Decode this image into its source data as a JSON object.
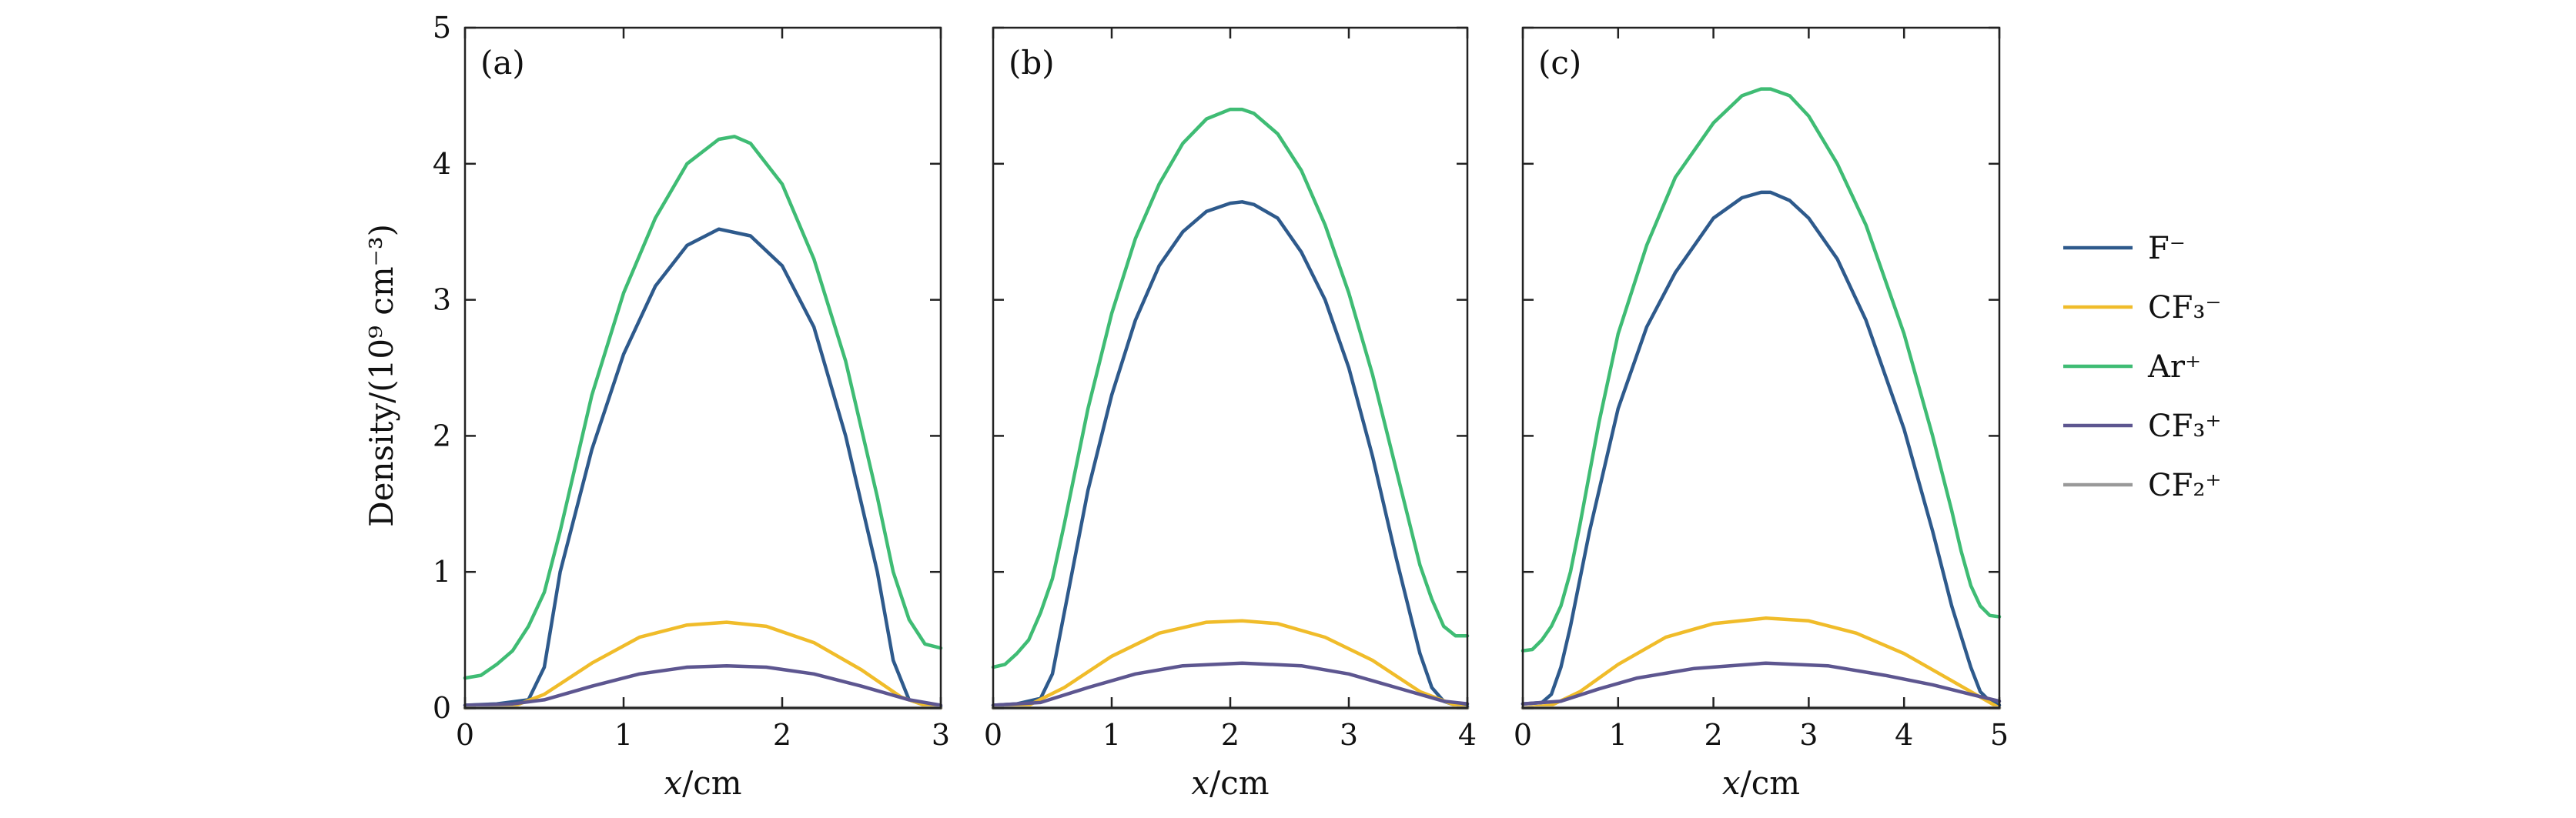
{
  "chart_data": [
    {
      "type": "line",
      "panel_label": "(a)",
      "xlabel_var": "x",
      "xlabel_unit": "/cm",
      "ylabel": "Density/(10⁹ cm⁻³)",
      "xlim": [
        0,
        3
      ],
      "ylim": [
        0,
        5
      ],
      "xticks": [
        0,
        1,
        2,
        3
      ],
      "yticks": [
        0,
        1,
        2,
        3,
        4,
        5
      ],
      "series": [
        {
          "name": "F⁻",
          "color": "#2e5a8c",
          "x": [
            0,
            0.2,
            0.4,
            0.5,
            0.6,
            0.8,
            1.0,
            1.2,
            1.4,
            1.6,
            1.8,
            2.0,
            2.2,
            2.4,
            2.6,
            2.7,
            2.8,
            2.9,
            3.0
          ],
          "y": [
            0.02,
            0.03,
            0.06,
            0.3,
            1.0,
            1.9,
            2.6,
            3.1,
            3.4,
            3.52,
            3.47,
            3.25,
            2.8,
            2.0,
            1.0,
            0.35,
            0.06,
            0.02,
            0.01
          ]
        },
        {
          "name": "CF₃⁻",
          "color": "#f0bc2a",
          "x": [
            0,
            0.3,
            0.5,
            0.8,
            1.1,
            1.4,
            1.65,
            1.9,
            2.2,
            2.5,
            2.75,
            2.9,
            3.0
          ],
          "y": [
            0.0,
            0.01,
            0.1,
            0.33,
            0.52,
            0.61,
            0.63,
            0.6,
            0.48,
            0.28,
            0.08,
            0.02,
            0.0
          ]
        },
        {
          "name": "Ar⁺",
          "color": "#3fbc74",
          "x": [
            0,
            0.1,
            0.2,
            0.3,
            0.4,
            0.5,
            0.6,
            0.8,
            1.0,
            1.2,
            1.4,
            1.6,
            1.7,
            1.8,
            2.0,
            2.2,
            2.4,
            2.6,
            2.7,
            2.8,
            2.9,
            3.0
          ],
          "y": [
            0.22,
            0.24,
            0.32,
            0.42,
            0.6,
            0.85,
            1.3,
            2.3,
            3.05,
            3.6,
            4.0,
            4.18,
            4.2,
            4.15,
            3.85,
            3.3,
            2.55,
            1.55,
            1.0,
            0.65,
            0.47,
            0.44
          ]
        },
        {
          "name": "CF₃⁺",
          "color": "#5d5690",
          "x": [
            0,
            0.3,
            0.5,
            0.8,
            1.1,
            1.4,
            1.65,
            1.9,
            2.2,
            2.5,
            2.8,
            3.0
          ],
          "y": [
            0.02,
            0.03,
            0.06,
            0.16,
            0.25,
            0.3,
            0.31,
            0.3,
            0.25,
            0.16,
            0.06,
            0.02
          ]
        },
        {
          "name": "CF₂⁺",
          "color": "#999999",
          "x": [
            0,
            3
          ],
          "y": [
            0.0,
            0.0
          ]
        }
      ]
    },
    {
      "type": "line",
      "panel_label": "(b)",
      "xlabel_var": "x",
      "xlabel_unit": "/cm",
      "ylabel": "",
      "xlim": [
        0,
        4
      ],
      "ylim": [
        0,
        5
      ],
      "xticks": [
        0,
        1,
        2,
        3,
        4
      ],
      "yticks": [
        0,
        1,
        2,
        3,
        4,
        5
      ],
      "series": [
        {
          "name": "F⁻",
          "color": "#2e5a8c",
          "x": [
            0,
            0.2,
            0.4,
            0.5,
            0.6,
            0.8,
            1.0,
            1.2,
            1.4,
            1.6,
            1.8,
            2.0,
            2.1,
            2.2,
            2.4,
            2.6,
            2.8,
            3.0,
            3.2,
            3.4,
            3.6,
            3.7,
            3.8,
            3.9,
            4.0
          ],
          "y": [
            0.02,
            0.03,
            0.07,
            0.25,
            0.7,
            1.6,
            2.3,
            2.85,
            3.25,
            3.5,
            3.65,
            3.71,
            3.72,
            3.7,
            3.6,
            3.35,
            3.0,
            2.5,
            1.85,
            1.1,
            0.4,
            0.15,
            0.05,
            0.02,
            0.01
          ]
        },
        {
          "name": "CF₃⁻",
          "color": "#f0bc2a",
          "x": [
            0,
            0.3,
            0.6,
            1.0,
            1.4,
            1.8,
            2.1,
            2.4,
            2.8,
            3.2,
            3.6,
            3.9,
            4.0
          ],
          "y": [
            0.0,
            0.02,
            0.15,
            0.38,
            0.55,
            0.63,
            0.64,
            0.62,
            0.52,
            0.35,
            0.12,
            0.02,
            0.0
          ]
        },
        {
          "name": "Ar⁺",
          "color": "#3fbc74",
          "x": [
            0,
            0.1,
            0.2,
            0.3,
            0.4,
            0.5,
            0.6,
            0.8,
            1.0,
            1.2,
            1.4,
            1.6,
            1.8,
            2.0,
            2.1,
            2.2,
            2.4,
            2.6,
            2.8,
            3.0,
            3.2,
            3.4,
            3.5,
            3.6,
            3.7,
            3.8,
            3.9,
            4.0
          ],
          "y": [
            0.3,
            0.32,
            0.4,
            0.5,
            0.7,
            0.95,
            1.35,
            2.2,
            2.9,
            3.45,
            3.85,
            4.15,
            4.33,
            4.4,
            4.4,
            4.37,
            4.22,
            3.95,
            3.55,
            3.05,
            2.45,
            1.75,
            1.4,
            1.05,
            0.8,
            0.6,
            0.53,
            0.53
          ]
        },
        {
          "name": "CF₃⁺",
          "color": "#5d5690",
          "x": [
            0,
            0.4,
            0.8,
            1.2,
            1.6,
            2.1,
            2.6,
            3.0,
            3.4,
            3.8,
            4.0
          ],
          "y": [
            0.02,
            0.04,
            0.15,
            0.25,
            0.31,
            0.33,
            0.31,
            0.25,
            0.15,
            0.05,
            0.03
          ]
        },
        {
          "name": "CF₂⁺",
          "color": "#999999",
          "x": [
            0,
            4
          ],
          "y": [
            0.0,
            0.0
          ]
        }
      ]
    },
    {
      "type": "line",
      "panel_label": "(c)",
      "xlabel_var": "x",
      "xlabel_unit": "/cm",
      "ylabel": "",
      "xlim": [
        0,
        5
      ],
      "ylim": [
        0,
        5
      ],
      "xticks": [
        0,
        1,
        2,
        3,
        4,
        5
      ],
      "yticks": [
        0,
        1,
        2,
        3,
        4,
        5
      ],
      "series": [
        {
          "name": "F⁻",
          "color": "#2e5a8c",
          "x": [
            0,
            0.2,
            0.3,
            0.4,
            0.5,
            0.7,
            1.0,
            1.3,
            1.6,
            2.0,
            2.3,
            2.5,
            2.6,
            2.8,
            3.0,
            3.3,
            3.6,
            4.0,
            4.3,
            4.5,
            4.7,
            4.8,
            4.9,
            5.0
          ],
          "y": [
            0.03,
            0.04,
            0.1,
            0.3,
            0.6,
            1.3,
            2.2,
            2.8,
            3.2,
            3.6,
            3.75,
            3.79,
            3.79,
            3.73,
            3.6,
            3.3,
            2.85,
            2.05,
            1.3,
            0.75,
            0.3,
            0.12,
            0.05,
            0.02
          ]
        },
        {
          "name": "CF₃⁻",
          "color": "#f0bc2a",
          "x": [
            0,
            0.3,
            0.6,
            1.0,
            1.5,
            2.0,
            2.55,
            3.0,
            3.5,
            4.0,
            4.5,
            4.9,
            5.0
          ],
          "y": [
            0.0,
            0.02,
            0.12,
            0.32,
            0.52,
            0.62,
            0.66,
            0.64,
            0.55,
            0.4,
            0.2,
            0.04,
            0.0
          ]
        },
        {
          "name": "Ar⁺",
          "color": "#3fbc74",
          "x": [
            0,
            0.1,
            0.2,
            0.3,
            0.4,
            0.5,
            0.6,
            0.8,
            1.0,
            1.3,
            1.6,
            2.0,
            2.3,
            2.5,
            2.6,
            2.8,
            3.0,
            3.3,
            3.6,
            4.0,
            4.3,
            4.5,
            4.6,
            4.7,
            4.8,
            4.9,
            5.0
          ],
          "y": [
            0.42,
            0.43,
            0.5,
            0.6,
            0.75,
            1.0,
            1.35,
            2.1,
            2.75,
            3.4,
            3.9,
            4.3,
            4.5,
            4.55,
            4.55,
            4.5,
            4.35,
            4.0,
            3.55,
            2.75,
            2.0,
            1.45,
            1.15,
            0.9,
            0.75,
            0.68,
            0.67
          ]
        },
        {
          "name": "CF₃⁺",
          "color": "#5d5690",
          "x": [
            0,
            0.4,
            0.8,
            1.2,
            1.8,
            2.55,
            3.2,
            3.8,
            4.3,
            4.7,
            5.0
          ],
          "y": [
            0.03,
            0.05,
            0.14,
            0.22,
            0.29,
            0.33,
            0.31,
            0.24,
            0.17,
            0.1,
            0.05
          ]
        },
        {
          "name": "CF₂⁺",
          "color": "#999999",
          "x": [
            0,
            5
          ],
          "y": [
            0.0,
            0.0
          ]
        }
      ]
    }
  ],
  "legend": {
    "placement": "right",
    "entries": [
      {
        "label": "F⁻",
        "color": "#2e5a8c"
      },
      {
        "label": "CF₃⁻",
        "color": "#f0bc2a"
      },
      {
        "label": "Ar⁺",
        "color": "#3fbc74"
      },
      {
        "label": "CF₃⁺",
        "color": "#5d5690"
      },
      {
        "label": "CF₂⁺",
        "color": "#999999"
      }
    ]
  }
}
